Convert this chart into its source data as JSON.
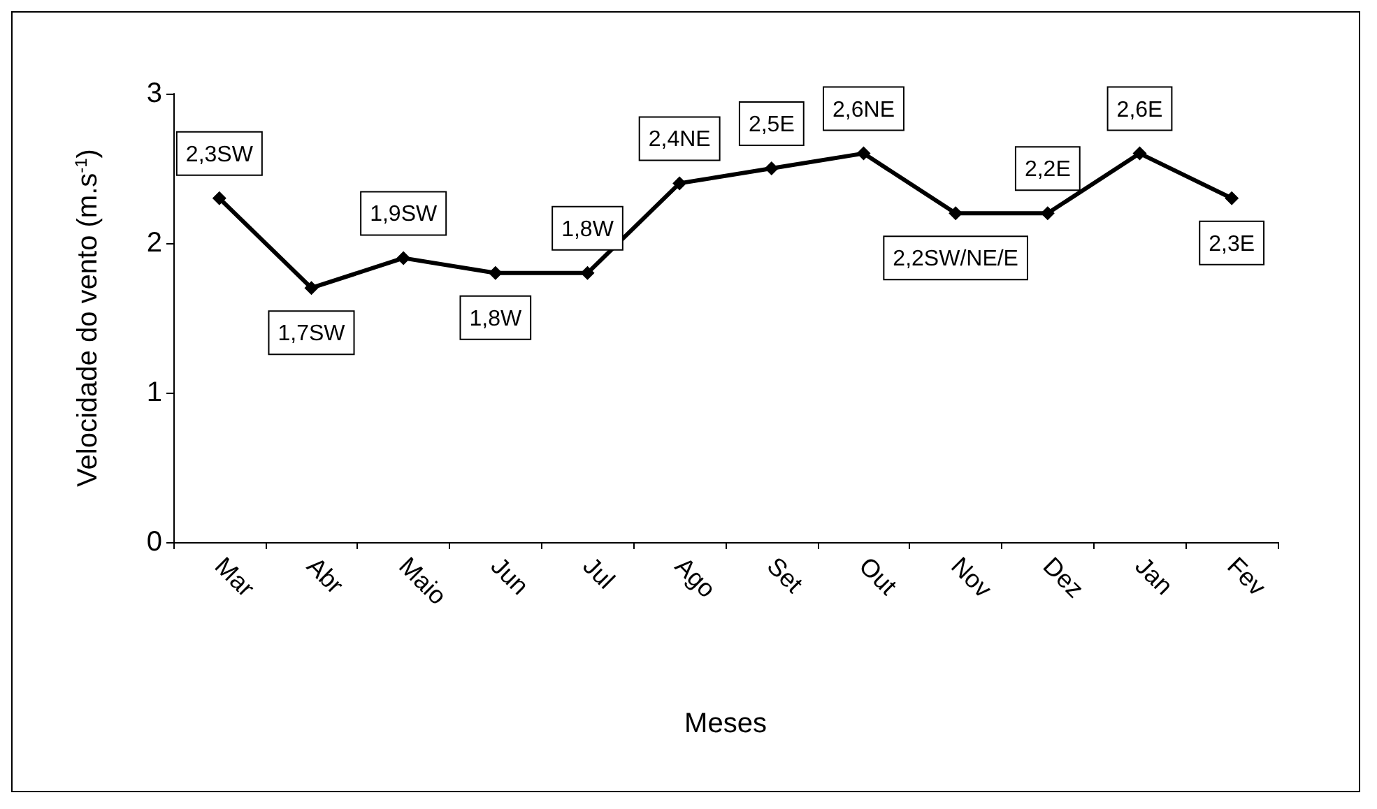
{
  "chart_data": {
    "type": "line",
    "xlabel": "Meses",
    "ylabel": "Velocidade do vento (m.s$^{-1}$)",
    "categories": [
      "Mar",
      "Abr",
      "Maio",
      "Jun",
      "Jul",
      "Ago",
      "Set",
      "Out",
      "Nov",
      "Dez",
      "Jan",
      "Fev"
    ],
    "series": [
      {
        "color": "#000000",
        "values": [
          2.3,
          1.7,
          1.9,
          1.8,
          1.8,
          2.4,
          2.5,
          2.6,
          2.2,
          2.2,
          2.6,
          2.3
        ],
        "value_labels": [
          "2,3SW",
          "1,7SW",
          "1,9SW",
          "1,8W",
          "1,8W",
          "2,4NE",
          "2,5E",
          "2,6NE",
          "2,2SW/NE/E",
          "2,2E",
          "2,6E",
          "2,3E"
        ]
      }
    ],
    "ylim": [
      0,
      3
    ],
    "yticks": [
      0,
      1,
      2,
      3
    ],
    "grid": false,
    "marker": "diamond",
    "line_style": "solid"
  }
}
